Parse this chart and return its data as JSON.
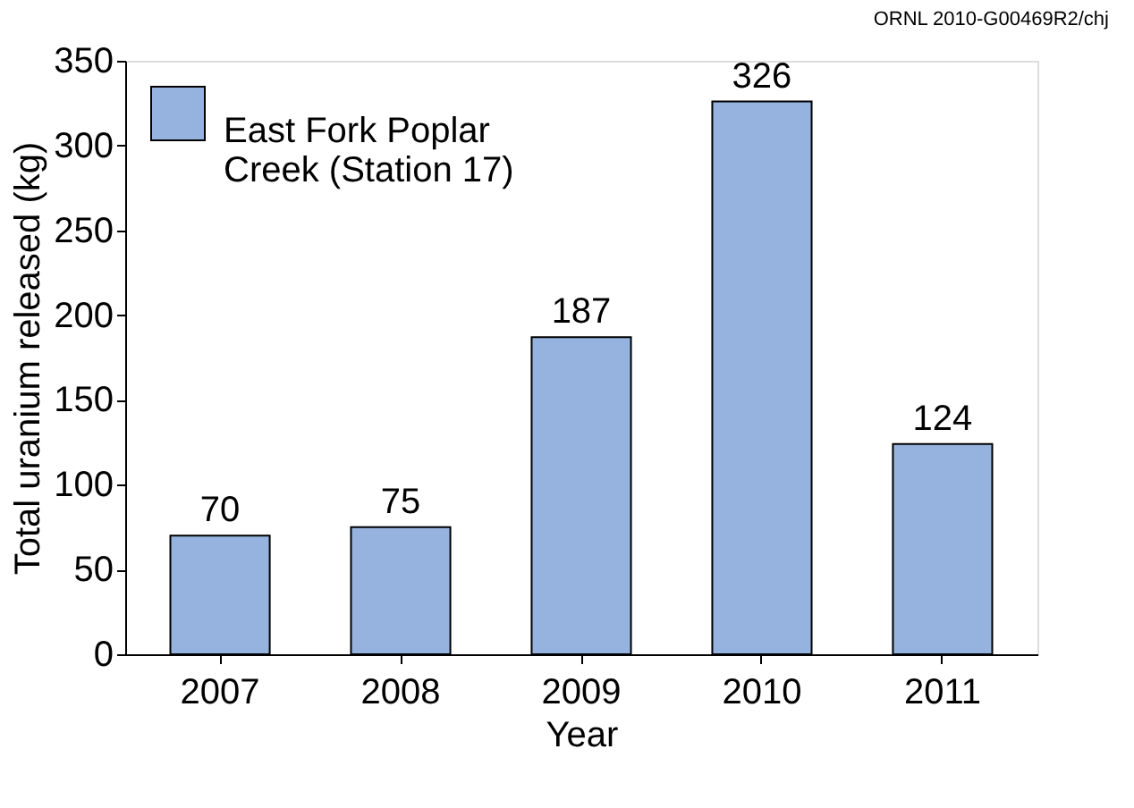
{
  "chart_data": {
    "type": "bar",
    "xlabel": "Year",
    "ylabel": "Total uranium released (kg)",
    "categories": [
      "2007",
      "2008",
      "2009",
      "2010",
      "2011"
    ],
    "series": [
      {
        "name": "East Fork Poplar Creek (Station 17)",
        "color": "#95b3de",
        "values": [
          70,
          75,
          187,
          326,
          124
        ]
      }
    ],
    "ylim": [
      0,
      350
    ],
    "yticks": [
      0,
      50,
      100,
      150,
      200,
      250,
      300,
      350
    ],
    "data_labels": true,
    "legend": "top left",
    "grid": false,
    "annotations": [
      "ORNL 2010-G00469R2/chj"
    ]
  }
}
